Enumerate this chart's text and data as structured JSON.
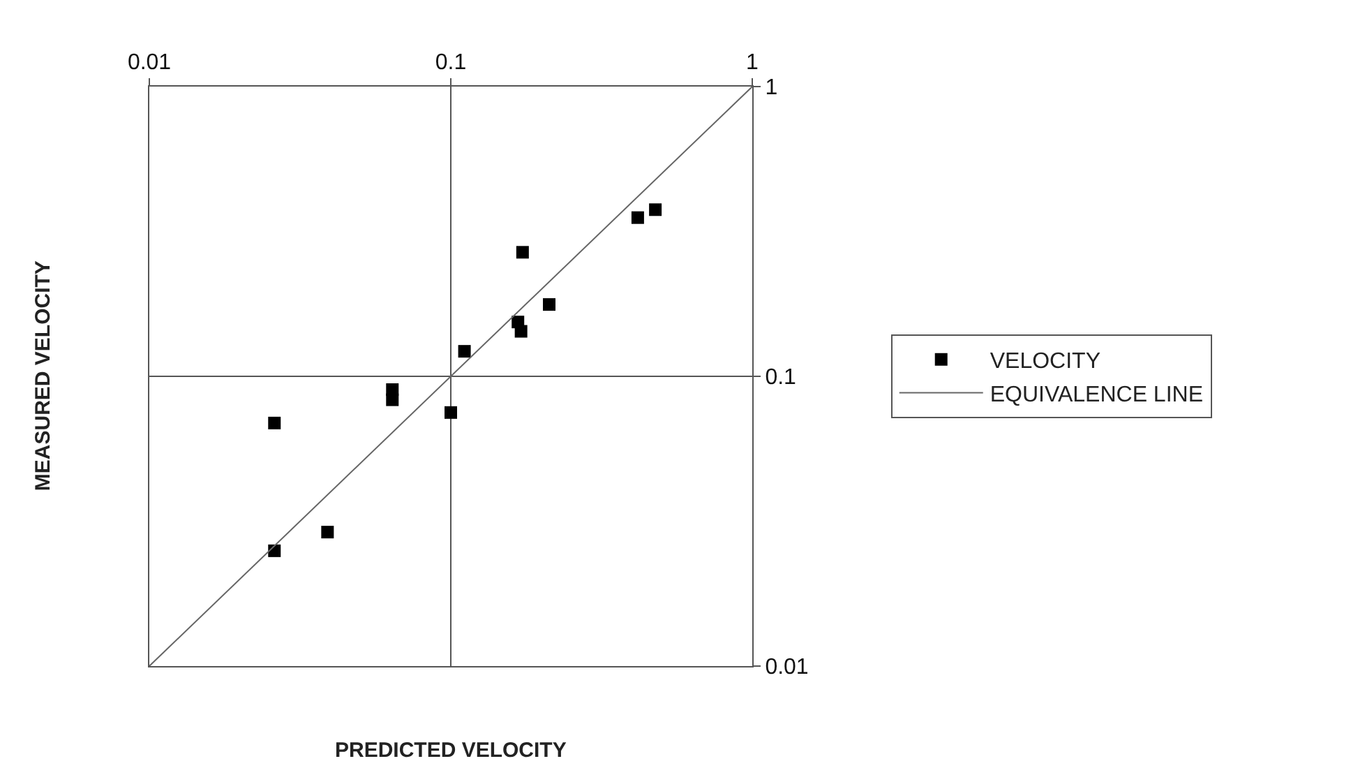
{
  "chart_data": {
    "type": "scatter",
    "xlabel": "PREDICTED VELOCITY",
    "ylabel": "MEASURED VELOCITY",
    "log": "xy",
    "xlim": [
      0.01,
      1
    ],
    "ylim": [
      0.01,
      1
    ],
    "xticks": [
      0.01,
      0.1,
      1
    ],
    "yticks": [
      0.01,
      0.1,
      1
    ],
    "grid": true,
    "legend": "right",
    "series": [
      {
        "name": "VELOCITY",
        "marker": "square",
        "color": "#000000",
        "x": [
          0.026,
          0.026,
          0.039,
          0.064,
          0.064,
          0.1,
          0.111,
          0.167,
          0.171,
          0.173,
          0.212,
          0.417,
          0.477
        ],
        "values": [
          0.069,
          0.025,
          0.029,
          0.09,
          0.083,
          0.075,
          0.122,
          0.154,
          0.143,
          0.268,
          0.177,
          0.353,
          0.376
        ]
      },
      {
        "name": "EQUIVALENCE LINE",
        "type": "line",
        "marker": "none",
        "color": "#666666",
        "x": [
          0.01,
          1
        ],
        "values": [
          0.01,
          1
        ]
      }
    ]
  }
}
